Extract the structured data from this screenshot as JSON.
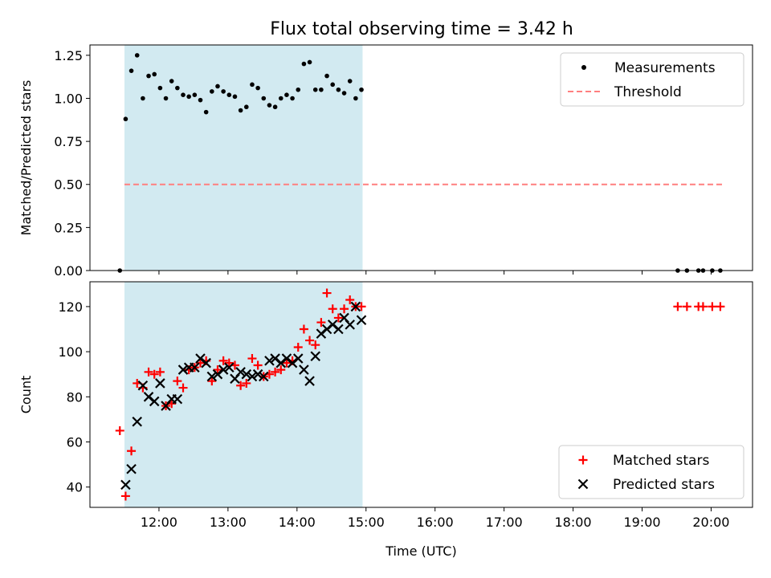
{
  "title": "Flux total observing time = 3.42 h",
  "colors": {
    "shade": "#add8e6",
    "threshold": "#ff7f7f",
    "measurements": "#000000",
    "matched": "#ff0000",
    "predicted": "#000000"
  },
  "chart_data": [
    {
      "type": "scatter",
      "ylabel": "Matched/Predicted stars",
      "xlim": [
        "11:00",
        "20:36"
      ],
      "ylim": [
        0,
        1.31
      ],
      "yticks": [
        "0.00",
        "0.25",
        "0.50",
        "0.75",
        "1.00",
        "1.25"
      ],
      "shaded_interval": [
        "11:30",
        "14:57"
      ],
      "legend": {
        "position": "upper right",
        "entries": [
          {
            "label": "Measurements",
            "marker": "dot"
          },
          {
            "label": "Threshold",
            "marker": "dashed-line"
          }
        ]
      },
      "threshold": {
        "label": "Threshold",
        "value": 0.5,
        "x_range": [
          "11:30",
          "20:10"
        ]
      },
      "series": [
        {
          "name": "Measurements",
          "points": [
            [
              "11:26",
              0.0
            ],
            [
              "11:31",
              0.88
            ],
            [
              "11:36",
              1.16
            ],
            [
              "11:41",
              1.25
            ],
            [
              "11:46",
              1.0
            ],
            [
              "11:51",
              1.13
            ],
            [
              "11:56",
              1.14
            ],
            [
              "12:01",
              1.06
            ],
            [
              "12:06",
              1.0
            ],
            [
              "12:11",
              1.1
            ],
            [
              "12:16",
              1.06
            ],
            [
              "12:21",
              1.02
            ],
            [
              "12:26",
              1.01
            ],
            [
              "12:31",
              1.02
            ],
            [
              "12:36",
              0.99
            ],
            [
              "12:41",
              0.92
            ],
            [
              "12:46",
              1.04
            ],
            [
              "12:51",
              1.07
            ],
            [
              "12:56",
              1.04
            ],
            [
              "13:01",
              1.02
            ],
            [
              "13:06",
              1.01
            ],
            [
              "13:11",
              0.93
            ],
            [
              "13:16",
              0.95
            ],
            [
              "13:21",
              1.08
            ],
            [
              "13:26",
              1.06
            ],
            [
              "13:31",
              1.0
            ],
            [
              "13:36",
              0.96
            ],
            [
              "13:41",
              0.95
            ],
            [
              "13:46",
              1.0
            ],
            [
              "13:51",
              1.02
            ],
            [
              "13:56",
              1.0
            ],
            [
              "14:01",
              1.05
            ],
            [
              "14:06",
              1.2
            ],
            [
              "14:11",
              1.21
            ],
            [
              "14:16",
              1.05
            ],
            [
              "14:21",
              1.05
            ],
            [
              "14:26",
              1.13
            ],
            [
              "14:31",
              1.08
            ],
            [
              "14:36",
              1.05
            ],
            [
              "14:41",
              1.03
            ],
            [
              "14:46",
              1.1
            ],
            [
              "14:51",
              1.0
            ],
            [
              "14:56",
              1.05
            ],
            [
              "19:31",
              0.0
            ],
            [
              "19:39",
              0.0
            ],
            [
              "19:49",
              0.0
            ],
            [
              "19:53",
              0.0
            ],
            [
              "20:01",
              0.0
            ],
            [
              "20:08",
              0.0
            ]
          ]
        }
      ]
    },
    {
      "type": "scatter",
      "xlabel": "Time (UTC)",
      "ylabel": "Count",
      "xlim": [
        "11:00",
        "20:36"
      ],
      "ylim": [
        31,
        131
      ],
      "yticks": [
        "40",
        "60",
        "80",
        "100",
        "120"
      ],
      "xticks": [
        "12:00",
        "13:00",
        "14:00",
        "15:00",
        "16:00",
        "17:00",
        "18:00",
        "19:00",
        "20:00"
      ],
      "shaded_interval": [
        "11:30",
        "14:57"
      ],
      "legend": {
        "position": "lower right",
        "entries": [
          {
            "label": "Matched stars",
            "marker": "plus"
          },
          {
            "label": "Predicted stars",
            "marker": "x"
          }
        ]
      },
      "series": [
        {
          "name": "Matched stars",
          "points": [
            [
              "11:26",
              65
            ],
            [
              "11:31",
              36
            ],
            [
              "11:36",
              56
            ],
            [
              "11:41",
              86
            ],
            [
              "11:46",
              84
            ],
            [
              "11:51",
              91
            ],
            [
              "11:56",
              90
            ],
            [
              "12:01",
              91
            ],
            [
              "12:06",
              76
            ],
            [
              "12:11",
              77
            ],
            [
              "12:16",
              87
            ],
            [
              "12:21",
              84
            ],
            [
              "12:26",
              92
            ],
            [
              "12:31",
              93
            ],
            [
              "12:36",
              95
            ],
            [
              "12:41",
              96
            ],
            [
              "12:46",
              87
            ],
            [
              "12:51",
              92
            ],
            [
              "12:56",
              96
            ],
            [
              "13:01",
              95
            ],
            [
              "13:06",
              94
            ],
            [
              "13:11",
              85
            ],
            [
              "13:16",
              86
            ],
            [
              "13:21",
              97
            ],
            [
              "13:26",
              94
            ],
            [
              "13:31",
              89
            ],
            [
              "13:36",
              90
            ],
            [
              "13:41",
              91
            ],
            [
              "13:46",
              92
            ],
            [
              "13:51",
              95
            ],
            [
              "13:56",
              96
            ],
            [
              "14:01",
              102
            ],
            [
              "14:06",
              110
            ],
            [
              "14:11",
              105
            ],
            [
              "14:16",
              103
            ],
            [
              "14:21",
              113
            ],
            [
              "14:26",
              126
            ],
            [
              "14:31",
              119
            ],
            [
              "14:36",
              115
            ],
            [
              "14:41",
              119
            ],
            [
              "14:46",
              123
            ],
            [
              "14:51",
              120
            ],
            [
              "14:56",
              120
            ],
            [
              "19:31",
              120
            ],
            [
              "19:39",
              120
            ],
            [
              "19:49",
              120
            ],
            [
              "19:53",
              120
            ],
            [
              "20:01",
              120
            ],
            [
              "20:08",
              120
            ]
          ]
        },
        {
          "name": "Predicted stars",
          "points": [
            [
              "11:31",
              41
            ],
            [
              "11:36",
              48
            ],
            [
              "11:41",
              69
            ],
            [
              "11:46",
              85
            ],
            [
              "11:51",
              80
            ],
            [
              "11:56",
              78
            ],
            [
              "12:01",
              86
            ],
            [
              "12:06",
              76
            ],
            [
              "12:11",
              79
            ],
            [
              "12:16",
              79
            ],
            [
              "12:21",
              92
            ],
            [
              "12:26",
              93
            ],
            [
              "12:31",
              93
            ],
            [
              "12:36",
              97
            ],
            [
              "12:41",
              95
            ],
            [
              "12:46",
              89
            ],
            [
              "12:51",
              90
            ],
            [
              "12:56",
              92
            ],
            [
              "13:01",
              93
            ],
            [
              "13:06",
              88
            ],
            [
              "13:11",
              91
            ],
            [
              "13:16",
              90
            ],
            [
              "13:21",
              89
            ],
            [
              "13:26",
              90
            ],
            [
              "13:31",
              89
            ],
            [
              "13:36",
              96
            ],
            [
              "13:41",
              97
            ],
            [
              "13:46",
              95
            ],
            [
              "13:51",
              97
            ],
            [
              "13:56",
              95
            ],
            [
              "14:01",
              97
            ],
            [
              "14:06",
              92
            ],
            [
              "14:11",
              87
            ],
            [
              "14:16",
              98
            ],
            [
              "14:21",
              108
            ],
            [
              "14:26",
              110
            ],
            [
              "14:31",
              112
            ],
            [
              "14:36",
              110
            ],
            [
              "14:41",
              115
            ],
            [
              "14:46",
              112
            ],
            [
              "14:51",
              120
            ],
            [
              "14:56",
              114
            ]
          ]
        }
      ]
    }
  ]
}
